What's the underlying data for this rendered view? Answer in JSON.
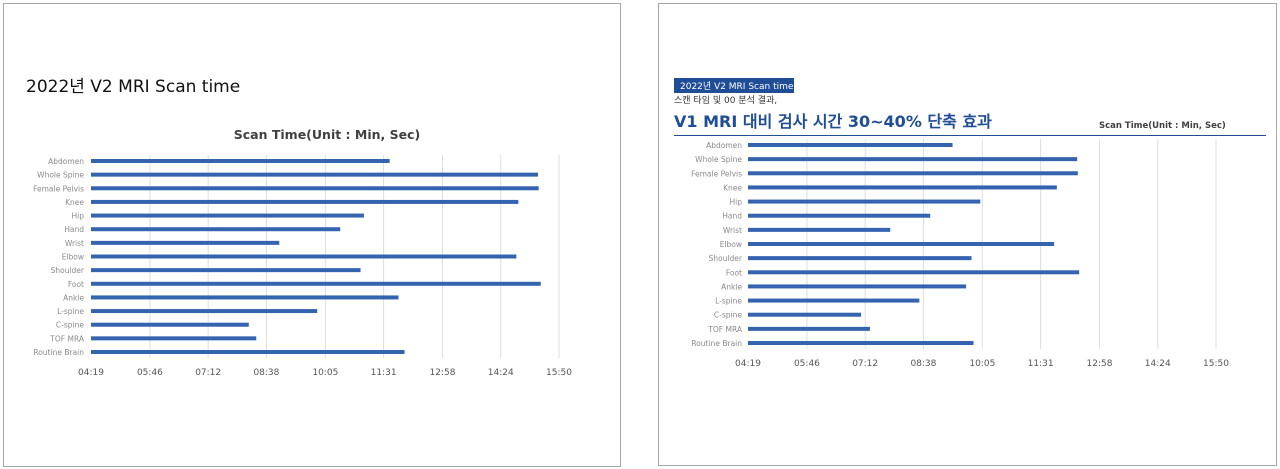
{
  "left_panel": {
    "title": "2022년 V2 MRI Scan time"
  },
  "right_panel": {
    "tag": "2022년 V2  MRI Scan time",
    "subline": "스캔 타임 및 00 분석 결과,",
    "headline": "V1 MRI 대비 검사 시간 30~40% 단축 효과"
  },
  "chart_data": [
    {
      "type": "bar",
      "orientation": "horizontal",
      "title": "Scan Time(Unit : Min, Sec)",
      "categories": [
        "Abdomen",
        "Whole Spine",
        "Female Pelvis",
        "Knee",
        "Hip",
        "Hand",
        "Wrist",
        "Elbow",
        "Shoulder",
        "Foot",
        "Ankle",
        "L-spine",
        "C-spine",
        "TOF MRA",
        "Routine Brain"
      ],
      "values_sec": [
        700,
        919,
        920,
        890,
        662,
        627,
        537,
        887,
        657,
        923,
        713,
        593,
        492,
        503,
        722
      ],
      "xticks": [
        "04:19",
        "05:46",
        "07:12",
        "08:38",
        "10:05",
        "11:31",
        "12:58",
        "14:24",
        "15:50"
      ],
      "xlim_sec": [
        259,
        950
      ],
      "grid": "vertical",
      "color": "#3463b0"
    },
    {
      "type": "bar",
      "orientation": "horizontal",
      "title": "Scan Time(Unit : Min, Sec)",
      "categories": [
        "Abdomen",
        "Whole Spine",
        "Female Pelvis",
        "Knee",
        "Hip",
        "Hand",
        "Wrist",
        "Elbow",
        "Shoulder",
        "Foot",
        "Ankle",
        "L-spine",
        "C-spine",
        "TOF MRA",
        "Routine Brain"
      ],
      "values_sec": [
        561,
        745,
        746,
        715,
        602,
        528,
        469,
        711,
        589,
        748,
        581,
        512,
        426,
        439,
        592
      ],
      "xticks": [
        "04:19",
        "05:46",
        "07:12",
        "08:38",
        "10:05",
        "11:31",
        "12:58",
        "14:24",
        "15:50"
      ],
      "xlim_sec": [
        259,
        950
      ],
      "grid": "vertical",
      "color": "#3463b0"
    }
  ]
}
